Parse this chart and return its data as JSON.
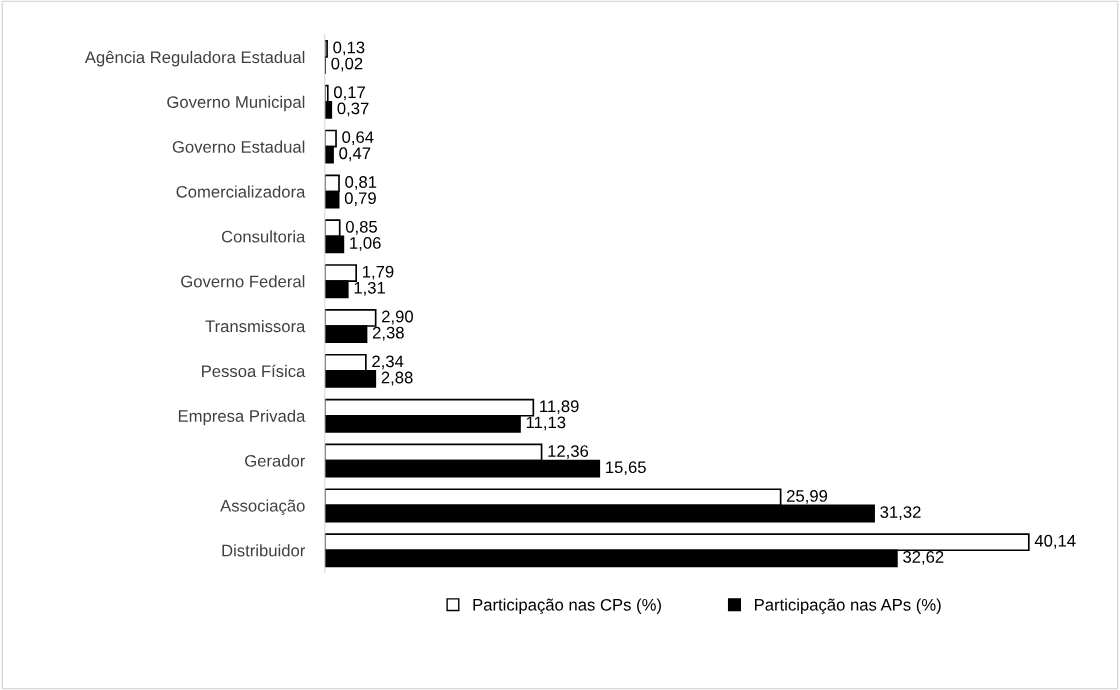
{
  "chart_data": {
    "type": "bar",
    "orientation": "horizontal",
    "legend": "bottom",
    "categories": [
      "Agência Reguladora Estadual",
      "Governo Municipal",
      "Governo Estadual",
      "Comercializadora",
      "Consultoria",
      "Governo Federal",
      "Transmissora",
      "Pessoa Física",
      "Empresa Privada",
      "Gerador",
      "Associação",
      "Distribuidor"
    ],
    "series": [
      {
        "name": "Participação nas CPs (%)",
        "color": "#ffffff",
        "values": [
          0.13,
          0.17,
          0.64,
          0.81,
          0.85,
          1.79,
          2.9,
          2.34,
          11.89,
          12.36,
          25.99,
          40.14
        ],
        "value_labels": [
          "0,13",
          "0,17",
          "0,64",
          "0,81",
          "0,85",
          "1,79",
          "2,90",
          "2,34",
          "11,89",
          "12,36",
          "25,99",
          "40,14"
        ]
      },
      {
        "name": "Participação nas APs (%)",
        "color": "#000000",
        "values": [
          0.02,
          0.37,
          0.47,
          0.79,
          1.06,
          1.31,
          2.38,
          2.88,
          11.13,
          15.65,
          31.32,
          32.62
        ],
        "value_labels": [
          "0,02",
          "0,37",
          "0,47",
          "0,79",
          "1,06",
          "1,31",
          "2,38",
          "2,88",
          "11,13",
          "15,65",
          "31,32",
          "32,62"
        ]
      }
    ]
  }
}
